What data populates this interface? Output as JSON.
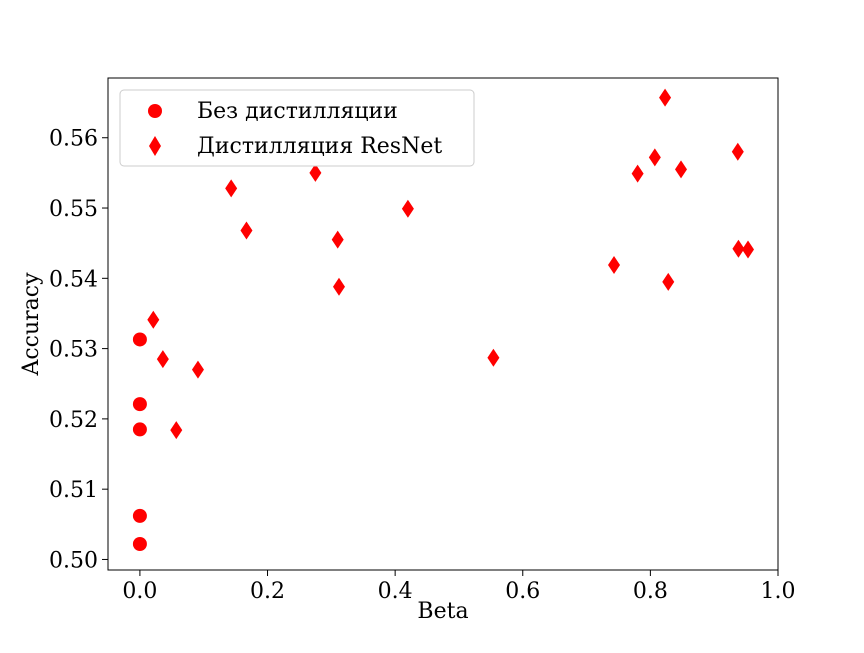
{
  "chart_data": {
    "type": "scatter",
    "title": "",
    "xlabel": "Beta",
    "ylabel": "Accuracy",
    "xlim": [
      -0.05,
      1.0
    ],
    "ylim": [
      0.4985,
      0.5685
    ],
    "xticks": [
      0.0,
      0.2,
      0.4,
      0.6,
      0.8,
      1.0
    ],
    "xtick_labels": [
      "0.0",
      "0.2",
      "0.4",
      "0.6",
      "0.8",
      "1.0"
    ],
    "yticks": [
      0.5,
      0.51,
      0.52,
      0.53,
      0.54,
      0.55,
      0.56
    ],
    "ytick_labels": [
      "0.50",
      "0.51",
      "0.52",
      "0.53",
      "0.54",
      "0.55",
      "0.56"
    ],
    "grid": false,
    "legend_position": "top-left",
    "series": [
      {
        "name": "Без дистилляции",
        "marker": "circle",
        "color": "#ff0000",
        "points": [
          {
            "x": 0.0,
            "y": 0.5313
          },
          {
            "x": 0.0,
            "y": 0.5221
          },
          {
            "x": 0.0,
            "y": 0.5185
          },
          {
            "x": 0.0,
            "y": 0.5062
          },
          {
            "x": 0.0,
            "y": 0.5022
          }
        ]
      },
      {
        "name": "Дистилляция ResNet",
        "marker": "diamond",
        "color": "#ff0000",
        "points": [
          {
            "x": 0.021,
            "y": 0.5341
          },
          {
            "x": 0.036,
            "y": 0.5285
          },
          {
            "x": 0.057,
            "y": 0.5184
          },
          {
            "x": 0.091,
            "y": 0.527
          },
          {
            "x": 0.143,
            "y": 0.5528
          },
          {
            "x": 0.167,
            "y": 0.5468
          },
          {
            "x": 0.275,
            "y": 0.555
          },
          {
            "x": 0.31,
            "y": 0.5455
          },
          {
            "x": 0.312,
            "y": 0.5388
          },
          {
            "x": 0.42,
            "y": 0.5499
          },
          {
            "x": 0.554,
            "y": 0.5287
          },
          {
            "x": 0.743,
            "y": 0.5419
          },
          {
            "x": 0.78,
            "y": 0.5549
          },
          {
            "x": 0.807,
            "y": 0.5572
          },
          {
            "x": 0.823,
            "y": 0.5657
          },
          {
            "x": 0.828,
            "y": 0.5395
          },
          {
            "x": 0.848,
            "y": 0.5555
          },
          {
            "x": 0.937,
            "y": 0.558
          },
          {
            "x": 0.938,
            "y": 0.5442
          },
          {
            "x": 0.953,
            "y": 0.5441
          }
        ]
      }
    ]
  }
}
